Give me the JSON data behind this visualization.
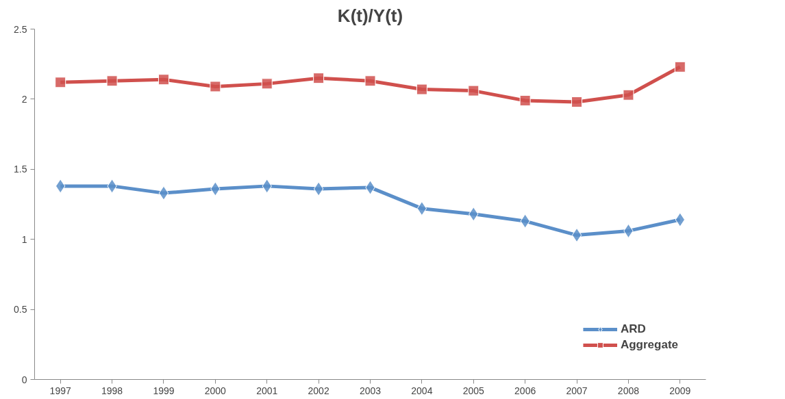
{
  "chart_data": {
    "type": "line",
    "title": "K(t)/Y(t)",
    "categories": [
      "1997",
      "1998",
      "1999",
      "2000",
      "2001",
      "2002",
      "2003",
      "2004",
      "2005",
      "2006",
      "2007",
      "2008",
      "2009"
    ],
    "series": [
      {
        "name": "ARD",
        "color": "#5b8fc9",
        "marker": "diamond",
        "values": [
          1.38,
          1.38,
          1.33,
          1.36,
          1.38,
          1.36,
          1.37,
          1.22,
          1.18,
          1.13,
          1.03,
          1.06,
          1.14
        ]
      },
      {
        "name": "Aggregate",
        "color": "#d0504d",
        "marker": "square",
        "values": [
          2.12,
          2.13,
          2.14,
          2.09,
          2.11,
          2.15,
          2.13,
          2.07,
          2.06,
          1.99,
          1.98,
          2.03,
          2.23
        ]
      }
    ],
    "ylim": [
      0,
      2.5
    ],
    "yticks": [
      0,
      0.5,
      1,
      1.5,
      2,
      2.5
    ],
    "grid": false,
    "legend": "bottom right"
  }
}
